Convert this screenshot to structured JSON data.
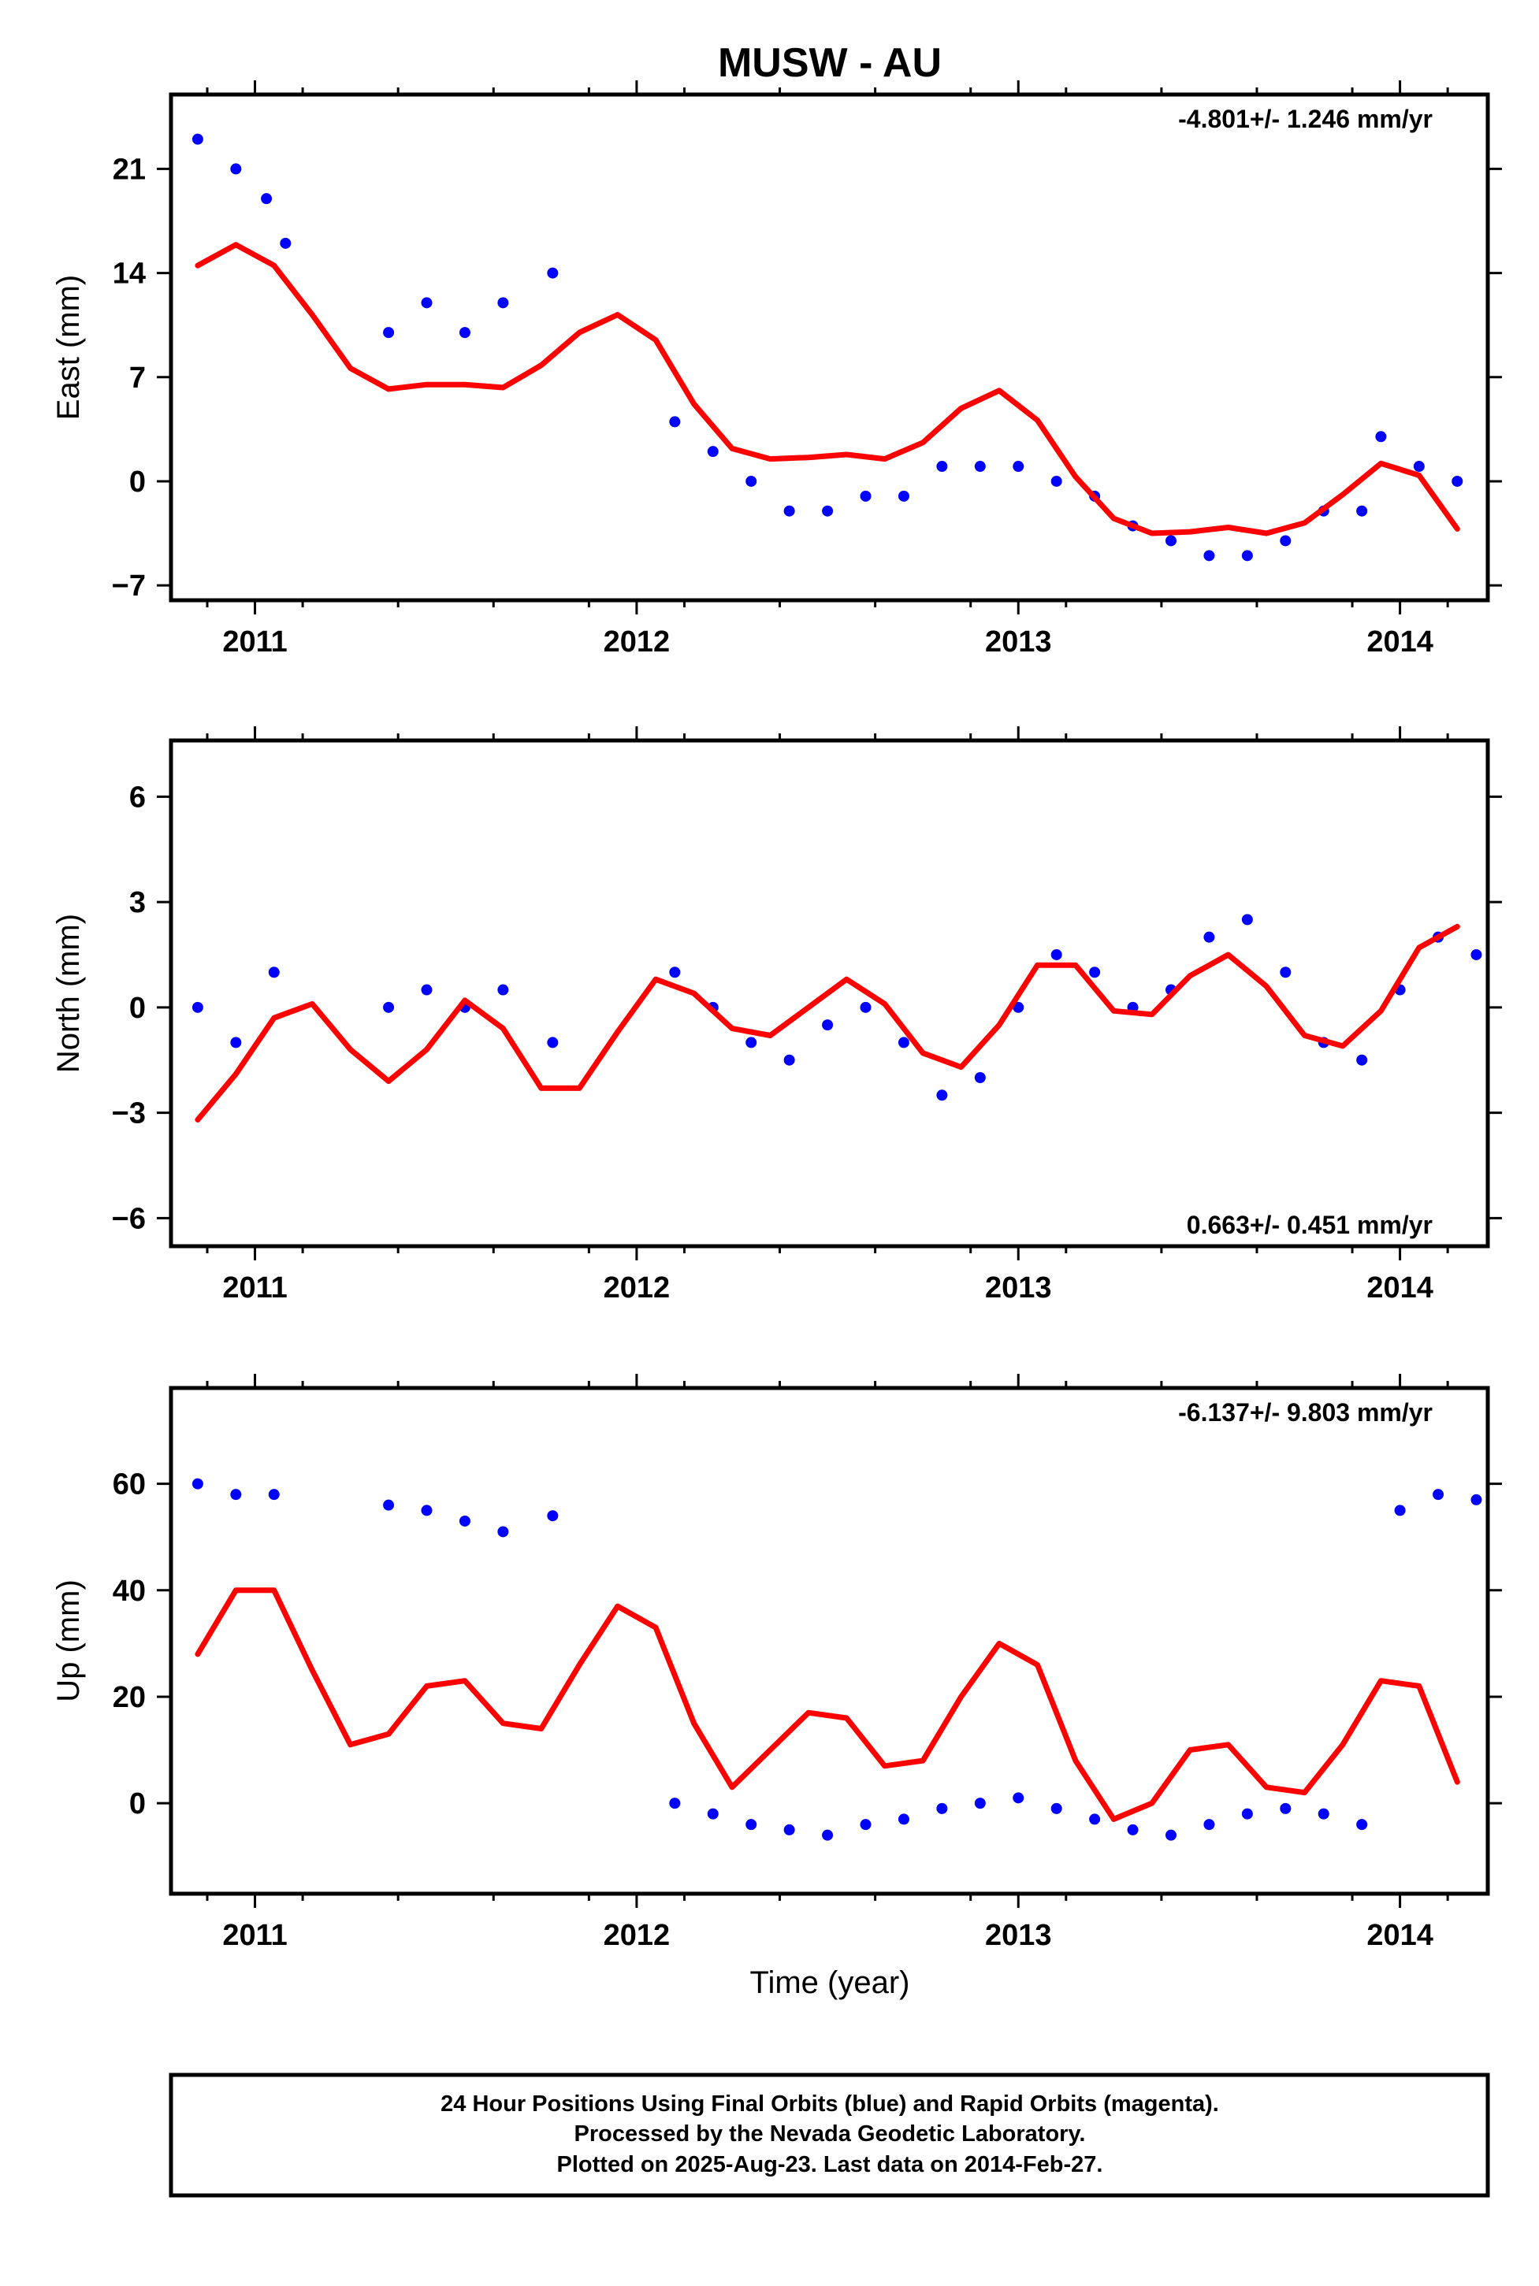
{
  "title": "MUSW - AU",
  "xlabel": "Time (year)",
  "colors": {
    "points": "#0000ff",
    "fit": "#ff0000",
    "frame": "#000000"
  },
  "footer": {
    "line1": "24 Hour Positions Using Final Orbits (blue) and Rapid Orbits (magenta).",
    "line2": "Processed by the Nevada Geodetic Laboratory.",
    "line3": "Plotted on 2025-Aug-23. Last data on 2014-Feb-27."
  },
  "chart_data": [
    {
      "type": "scatter",
      "ylabel": "East (mm)",
      "rate_label": "-4.801+/- 1.246 mm/yr",
      "rate_position": "top-right",
      "xlim": [
        2010.78,
        2014.23
      ],
      "ylim": [
        -8,
        26
      ],
      "xticks": [
        2011,
        2012,
        2013,
        2014
      ],
      "xtick_labels": [
        "2011",
        "2012",
        "2013",
        "2014"
      ],
      "yticks": [
        -7,
        0,
        7,
        14,
        21
      ],
      "ytick_labels": [
        "−7",
        "0",
        "7",
        "14",
        "21"
      ],
      "series": [
        {
          "style": "points",
          "x": [
            2010.85,
            2010.95,
            2011.03,
            2011.08,
            2011.35,
            2011.45,
            2011.55,
            2011.65,
            2011.78,
            2012.1,
            2012.2,
            2012.3,
            2012.4,
            2012.5,
            2012.6,
            2012.7,
            2012.8,
            2012.9,
            2013.0,
            2013.1,
            2013.2,
            2013.3,
            2013.4,
            2013.5,
            2013.6,
            2013.7,
            2013.8,
            2013.9,
            2013.95,
            2014.05,
            2014.15
          ],
          "y": [
            23,
            21,
            19,
            16,
            10,
            12,
            10,
            12,
            14,
            4,
            2,
            0,
            -2,
            -2,
            -1,
            -1,
            1,
            1,
            1,
            0,
            -1,
            -3,
            -4,
            -5,
            -5,
            -4,
            -2,
            -2,
            3,
            1,
            0
          ]
        },
        {
          "style": "line",
          "x": [
            2010.85,
            2010.95,
            2011.05,
            2011.15,
            2011.25,
            2011.35,
            2011.45,
            2011.55,
            2011.65,
            2011.75,
            2011.85,
            2011.95,
            2012.05,
            2012.15,
            2012.25,
            2012.35,
            2012.45,
            2012.55,
            2012.65,
            2012.75,
            2012.85,
            2012.95,
            2013.05,
            2013.15,
            2013.25,
            2013.35,
            2013.45,
            2013.55,
            2013.65,
            2013.75,
            2013.85,
            2013.95,
            2014.05,
            2014.15
          ],
          "y": [
            14.5,
            15.9,
            14.5,
            11.2,
            7.6,
            6.2,
            6.5,
            6.5,
            6.3,
            7.8,
            10,
            11.2,
            9.5,
            5.2,
            2.2,
            1.5,
            1.6,
            1.8,
            1.5,
            2.6,
            4.9,
            6.1,
            4.1,
            0.3,
            -2.5,
            -3.5,
            -3.4,
            -3.1,
            -3.5,
            -2.8,
            -0.9,
            1.2,
            0.4,
            -3.2
          ]
        }
      ]
    },
    {
      "type": "scatter",
      "ylabel": "North (mm)",
      "rate_label": "0.663+/- 0.451 mm/yr",
      "rate_position": "bottom-right",
      "xlim": [
        2010.78,
        2014.23
      ],
      "ylim": [
        -6.8,
        7.6
      ],
      "xticks": [
        2011,
        2012,
        2013,
        2014
      ],
      "xtick_labels": [
        "2011",
        "2012",
        "2013",
        "2014"
      ],
      "yticks": [
        -6,
        -3,
        0,
        3,
        6
      ],
      "ytick_labels": [
        "−6",
        "−3",
        "0",
        "3",
        "6"
      ],
      "series": [
        {
          "style": "points",
          "x": [
            2010.85,
            2010.95,
            2011.05,
            2011.35,
            2011.45,
            2011.55,
            2011.65,
            2011.78,
            2012.1,
            2012.2,
            2012.3,
            2012.4,
            2012.5,
            2012.6,
            2012.7,
            2012.8,
            2012.9,
            2013.0,
            2013.1,
            2013.2,
            2013.3,
            2013.4,
            2013.5,
            2013.6,
            2013.7,
            2013.8,
            2013.9,
            2014.0,
            2014.1,
            2014.2
          ],
          "y": [
            0,
            -1,
            1,
            0,
            0.5,
            0,
            0.5,
            -1,
            1,
            0,
            -1,
            -1.5,
            -0.5,
            0,
            -1,
            -2.5,
            -2,
            0,
            1.5,
            1,
            0,
            0.5,
            2,
            2.5,
            1,
            -1,
            -1.5,
            0.5,
            2,
            1.5
          ]
        },
        {
          "style": "line",
          "x": [
            2010.85,
            2010.95,
            2011.05,
            2011.15,
            2011.25,
            2011.35,
            2011.45,
            2011.55,
            2011.65,
            2011.75,
            2011.85,
            2011.95,
            2012.05,
            2012.15,
            2012.25,
            2012.35,
            2012.45,
            2012.55,
            2012.65,
            2012.75,
            2012.85,
            2012.95,
            2013.05,
            2013.15,
            2013.25,
            2013.35,
            2013.45,
            2013.55,
            2013.65,
            2013.75,
            2013.85,
            2013.95,
            2014.05,
            2014.15
          ],
          "y": [
            -3.2,
            -1.9,
            -0.3,
            0.1,
            -1.2,
            -2.1,
            -1.2,
            0.2,
            -0.6,
            -2.3,
            -2.3,
            -0.7,
            0.8,
            0.4,
            -0.6,
            -0.8,
            0.0,
            0.8,
            0.1,
            -1.3,
            -1.7,
            -0.5,
            1.2,
            1.2,
            -0.1,
            -0.2,
            0.9,
            1.5,
            0.6,
            -0.8,
            -1.1,
            -0.1,
            1.7,
            2.3
          ]
        }
      ]
    },
    {
      "type": "scatter",
      "ylabel": "Up (mm)",
      "rate_label": "-6.137+/- 9.803 mm/yr",
      "rate_position": "top-right",
      "xlim": [
        2010.78,
        2014.23
      ],
      "ylim": [
        -17,
        78
      ],
      "xticks": [
        2011,
        2012,
        2013,
        2014
      ],
      "xtick_labels": [
        "2011",
        "2012",
        "2013",
        "2014"
      ],
      "yticks": [
        0,
        20,
        40,
        60
      ],
      "ytick_labels": [
        "0",
        "20",
        "40",
        "60"
      ],
      "series": [
        {
          "style": "points",
          "x": [
            2010.85,
            2010.95,
            2011.05,
            2011.35,
            2011.45,
            2011.55,
            2011.65,
            2011.78,
            2012.1,
            2012.2,
            2012.3,
            2012.4,
            2012.5,
            2012.6,
            2012.7,
            2012.8,
            2012.9,
            2013.0,
            2013.1,
            2013.2,
            2013.3,
            2013.4,
            2013.5,
            2013.6,
            2013.7,
            2013.8,
            2013.9,
            2014.0,
            2014.1,
            2014.2
          ],
          "y": [
            60,
            58,
            58,
            56,
            55,
            53,
            51,
            54,
            0,
            -2,
            -4,
            -5,
            -6,
            -4,
            -3,
            -1,
            0,
            1,
            -1,
            -3,
            -5,
            -6,
            -4,
            -2,
            -1,
            -2,
            -4,
            55,
            58,
            57
          ]
        },
        {
          "style": "line",
          "x": [
            2010.85,
            2010.95,
            2011.05,
            2011.15,
            2011.25,
            2011.35,
            2011.45,
            2011.55,
            2011.65,
            2011.75,
            2011.85,
            2011.95,
            2012.05,
            2012.15,
            2012.25,
            2012.35,
            2012.45,
            2012.55,
            2012.65,
            2012.75,
            2012.85,
            2012.95,
            2013.05,
            2013.15,
            2013.25,
            2013.35,
            2013.45,
            2013.55,
            2013.65,
            2013.75,
            2013.85,
            2013.95,
            2014.05,
            2014.15
          ],
          "y": [
            28,
            40,
            40,
            25,
            11,
            13,
            22,
            23,
            15,
            14,
            26,
            37,
            33,
            15,
            3,
            10,
            17,
            16,
            7,
            8,
            20,
            30,
            26,
            8,
            -3,
            0,
            10,
            11,
            3,
            2,
            11,
            23,
            22,
            4
          ]
        }
      ]
    }
  ]
}
